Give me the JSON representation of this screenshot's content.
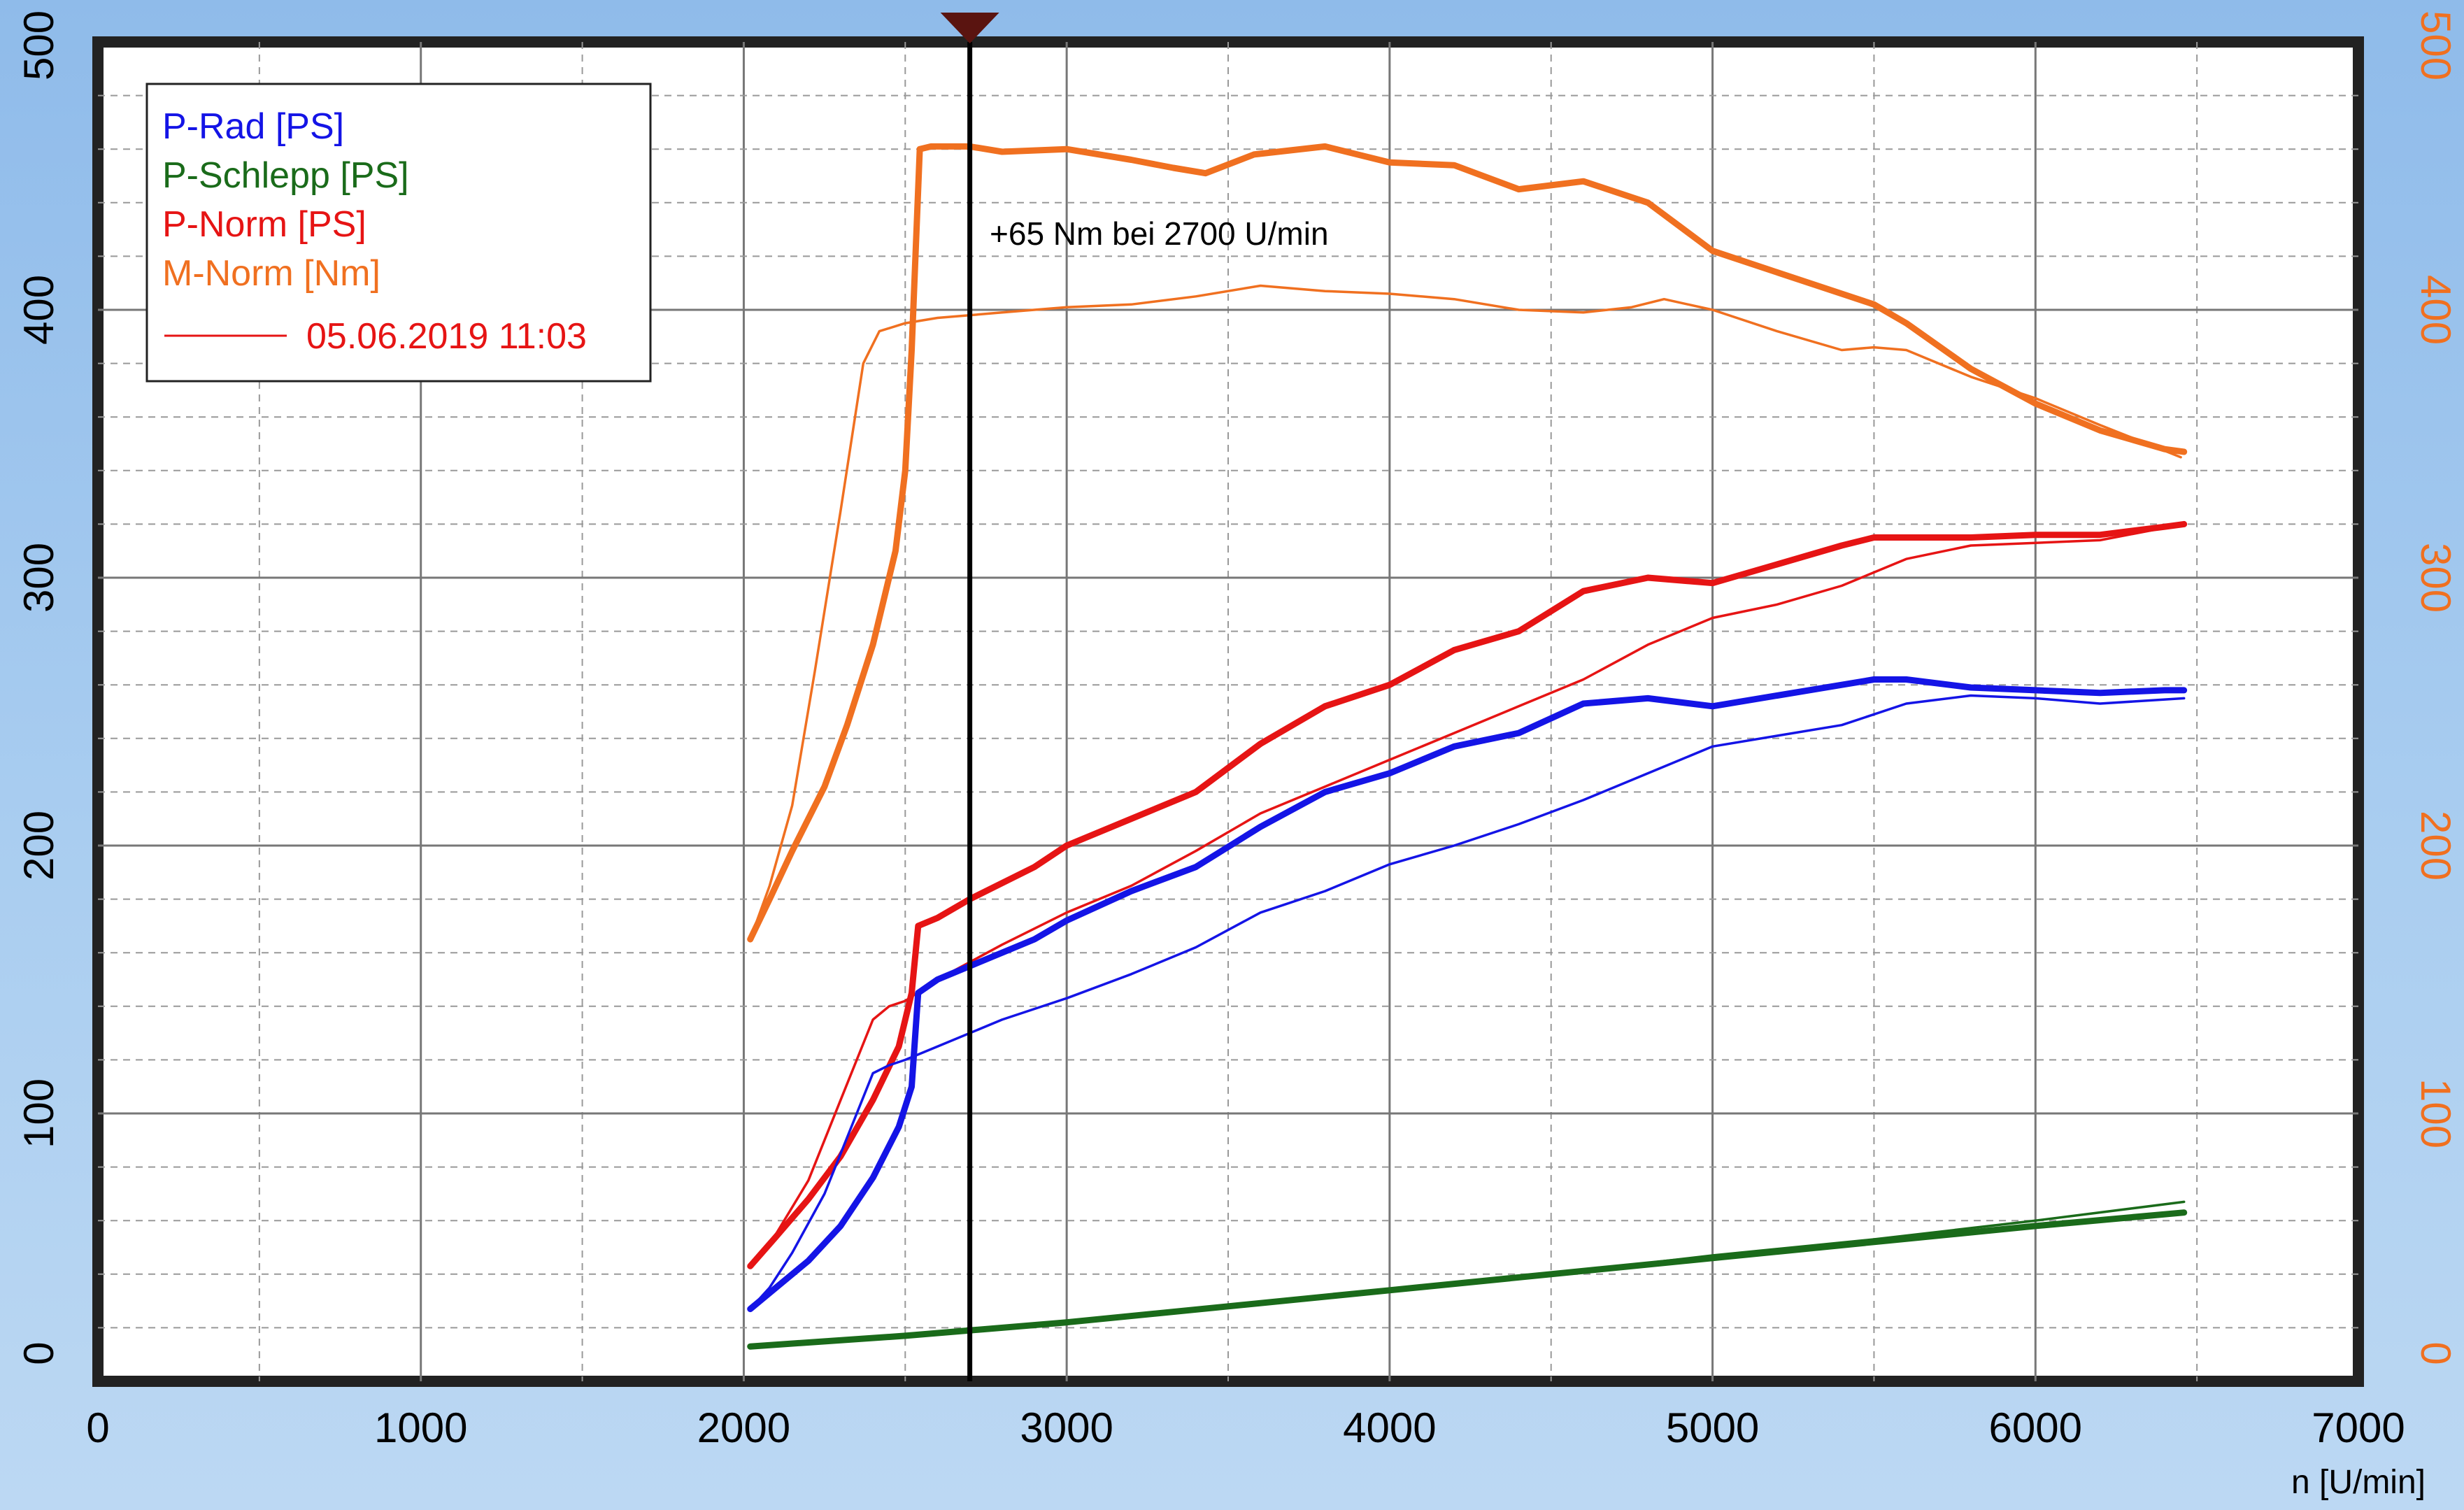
{
  "chart_data": {
    "type": "line",
    "title": "",
    "xlabel": "n [U/min]",
    "ylabel_left": "",
    "ylabel_right": "",
    "xlim": [
      0,
      7000
    ],
    "ylim_left": [
      0,
      500
    ],
    "ylim_right": [
      0,
      500
    ],
    "x_ticks": [
      "0",
      "1000",
      "2000",
      "3000",
      "4000",
      "5000",
      "6000",
      "7000"
    ],
    "y_left_ticks": [
      "0",
      "100",
      "200",
      "300",
      "400",
      "500"
    ],
    "y_right_ticks": [
      "0",
      "100",
      "200",
      "300",
      "400",
      "500"
    ],
    "grid": true,
    "legend_position": "top-left",
    "legend": {
      "entries": [
        {
          "label": "P-Rad [PS]",
          "color": "#1414e6"
        },
        {
          "label": "P-Schlepp [PS]",
          "color": "#1a6b1a"
        },
        {
          "label": "P-Norm [PS]",
          "color": "#e61414"
        },
        {
          "label": "M-Norm [Nm]",
          "color": "#f07020"
        }
      ],
      "run_label": "05.06.2019 11:03",
      "run_color": "#e61414"
    },
    "cursor": {
      "x": 2700
    },
    "annotation": "+65 Nm bei 2700 U/min",
    "colors": {
      "p_rad": "#1414e6",
      "p_schlepp": "#1a6b1a",
      "p_norm": "#e61414",
      "m_norm": "#f07020",
      "right_axis": "#f07020",
      "cursor": "#000000",
      "marker": "#5a1410"
    },
    "series": [
      {
        "key": "m_norm",
        "run": "current",
        "color": "#f07020",
        "points": [
          [
            2020,
            165
          ],
          [
            2080,
            180
          ],
          [
            2150,
            198
          ],
          [
            2250,
            222
          ],
          [
            2320,
            245
          ],
          [
            2400,
            275
          ],
          [
            2470,
            310
          ],
          [
            2500,
            340
          ],
          [
            2520,
            385
          ],
          [
            2545,
            460
          ],
          [
            2580,
            461
          ],
          [
            2700,
            461
          ],
          [
            2800,
            459
          ],
          [
            3000,
            460
          ],
          [
            3200,
            456
          ],
          [
            3330,
            453
          ],
          [
            3430,
            451
          ],
          [
            3580,
            458
          ],
          [
            3800,
            461
          ],
          [
            4000,
            455
          ],
          [
            4200,
            454
          ],
          [
            4400,
            445
          ],
          [
            4600,
            448
          ],
          [
            4800,
            440
          ],
          [
            5000,
            422
          ],
          [
            5200,
            414
          ],
          [
            5400,
            406
          ],
          [
            5500,
            402
          ],
          [
            5600,
            395
          ],
          [
            5800,
            378
          ],
          [
            6000,
            365
          ],
          [
            6200,
            355
          ],
          [
            6400,
            348
          ],
          [
            6460,
            347
          ]
        ]
      },
      {
        "key": "m_norm",
        "run": "reference",
        "color": "#f07020",
        "points": [
          [
            2020,
            165
          ],
          [
            2080,
            185
          ],
          [
            2150,
            215
          ],
          [
            2220,
            265
          ],
          [
            2300,
            325
          ],
          [
            2370,
            380
          ],
          [
            2420,
            392
          ],
          [
            2500,
            395
          ],
          [
            2600,
            397
          ],
          [
            2800,
            399
          ],
          [
            3000,
            401
          ],
          [
            3200,
            402
          ],
          [
            3400,
            405
          ],
          [
            3600,
            409
          ],
          [
            3800,
            407
          ],
          [
            4000,
            406
          ],
          [
            4200,
            404
          ],
          [
            4400,
            400
          ],
          [
            4600,
            399
          ],
          [
            4750,
            401
          ],
          [
            4850,
            404
          ],
          [
            5000,
            400
          ],
          [
            5200,
            392
          ],
          [
            5400,
            385
          ],
          [
            5500,
            386
          ],
          [
            5600,
            385
          ],
          [
            5800,
            375
          ],
          [
            6000,
            367
          ],
          [
            6200,
            357
          ],
          [
            6450,
            345
          ]
        ]
      },
      {
        "key": "p_norm",
        "run": "current",
        "color": "#e61414",
        "points": [
          [
            2020,
            43
          ],
          [
            2100,
            54
          ],
          [
            2200,
            68
          ],
          [
            2300,
            84
          ],
          [
            2400,
            105
          ],
          [
            2480,
            125
          ],
          [
            2520,
            145
          ],
          [
            2540,
            170
          ],
          [
            2600,
            173
          ],
          [
            2700,
            180
          ],
          [
            2900,
            192
          ],
          [
            3000,
            200
          ],
          [
            3200,
            210
          ],
          [
            3400,
            220
          ],
          [
            3600,
            238
          ],
          [
            3800,
            252
          ],
          [
            4000,
            260
          ],
          [
            4200,
            273
          ],
          [
            4400,
            280
          ],
          [
            4600,
            295
          ],
          [
            4800,
            300
          ],
          [
            5000,
            298
          ],
          [
            5200,
            305
          ],
          [
            5400,
            312
          ],
          [
            5500,
            315
          ],
          [
            5600,
            315
          ],
          [
            5800,
            315
          ],
          [
            6000,
            316
          ],
          [
            6200,
            316
          ],
          [
            6400,
            319
          ],
          [
            6460,
            320
          ]
        ]
      },
      {
        "key": "p_norm",
        "run": "reference",
        "color": "#e61414",
        "points": [
          [
            2020,
            43
          ],
          [
            2100,
            55
          ],
          [
            2200,
            75
          ],
          [
            2300,
            105
          ],
          [
            2400,
            135
          ],
          [
            2450,
            140
          ],
          [
            2500,
            142
          ],
          [
            2600,
            150
          ],
          [
            2800,
            163
          ],
          [
            3000,
            175
          ],
          [
            3200,
            185
          ],
          [
            3400,
            198
          ],
          [
            3600,
            212
          ],
          [
            3800,
            222
          ],
          [
            4000,
            232
          ],
          [
            4200,
            242
          ],
          [
            4400,
            252
          ],
          [
            4600,
            262
          ],
          [
            4800,
            275
          ],
          [
            5000,
            285
          ],
          [
            5200,
            290
          ],
          [
            5400,
            297
          ],
          [
            5600,
            307
          ],
          [
            5800,
            312
          ],
          [
            6000,
            313
          ],
          [
            6200,
            314
          ],
          [
            6460,
            320
          ]
        ]
      },
      {
        "key": "p_rad",
        "run": "current",
        "color": "#1414e6",
        "points": [
          [
            2020,
            27
          ],
          [
            2100,
            35
          ],
          [
            2200,
            45
          ],
          [
            2300,
            58
          ],
          [
            2400,
            76
          ],
          [
            2480,
            95
          ],
          [
            2520,
            110
          ],
          [
            2540,
            145
          ],
          [
            2600,
            150
          ],
          [
            2700,
            155
          ],
          [
            2900,
            165
          ],
          [
            3000,
            172
          ],
          [
            3200,
            183
          ],
          [
            3400,
            192
          ],
          [
            3600,
            207
          ],
          [
            3800,
            220
          ],
          [
            4000,
            227
          ],
          [
            4200,
            237
          ],
          [
            4400,
            242
          ],
          [
            4600,
            253
          ],
          [
            4800,
            255
          ],
          [
            5000,
            252
          ],
          [
            5200,
            256
          ],
          [
            5400,
            260
          ],
          [
            5500,
            262
          ],
          [
            5600,
            262
          ],
          [
            5800,
            259
          ],
          [
            6000,
            258
          ],
          [
            6200,
            257
          ],
          [
            6400,
            258
          ],
          [
            6460,
            258
          ]
        ]
      },
      {
        "key": "p_rad",
        "run": "reference",
        "color": "#1414e6",
        "points": [
          [
            2020,
            27
          ],
          [
            2080,
            35
          ],
          [
            2150,
            48
          ],
          [
            2250,
            70
          ],
          [
            2350,
            100
          ],
          [
            2400,
            115
          ],
          [
            2450,
            118
          ],
          [
            2500,
            120
          ],
          [
            2600,
            125
          ],
          [
            2800,
            135
          ],
          [
            3000,
            143
          ],
          [
            3200,
            152
          ],
          [
            3400,
            162
          ],
          [
            3600,
            175
          ],
          [
            3800,
            183
          ],
          [
            4000,
            193
          ],
          [
            4200,
            200
          ],
          [
            4400,
            208
          ],
          [
            4600,
            217
          ],
          [
            4800,
            227
          ],
          [
            5000,
            237
          ],
          [
            5200,
            241
          ],
          [
            5400,
            245
          ],
          [
            5600,
            253
          ],
          [
            5800,
            256
          ],
          [
            6000,
            255
          ],
          [
            6200,
            253
          ],
          [
            6460,
            255
          ]
        ]
      },
      {
        "key": "p_schlepp",
        "run": "current",
        "color": "#1a6b1a",
        "points": [
          [
            2020,
            13
          ],
          [
            2500,
            17
          ],
          [
            3000,
            22
          ],
          [
            3500,
            28
          ],
          [
            4000,
            34
          ],
          [
            4500,
            40
          ],
          [
            5000,
            46
          ],
          [
            5500,
            52
          ],
          [
            6000,
            58
          ],
          [
            6460,
            63
          ]
        ]
      },
      {
        "key": "p_schlepp",
        "run": "reference",
        "color": "#1a6b1a",
        "points": [
          [
            2020,
            13
          ],
          [
            2500,
            17
          ],
          [
            3000,
            22
          ],
          [
            3500,
            28
          ],
          [
            4000,
            34
          ],
          [
            4500,
            40
          ],
          [
            5000,
            47
          ],
          [
            5500,
            53
          ],
          [
            6000,
            60
          ],
          [
            6460,
            67
          ]
        ]
      }
    ]
  }
}
